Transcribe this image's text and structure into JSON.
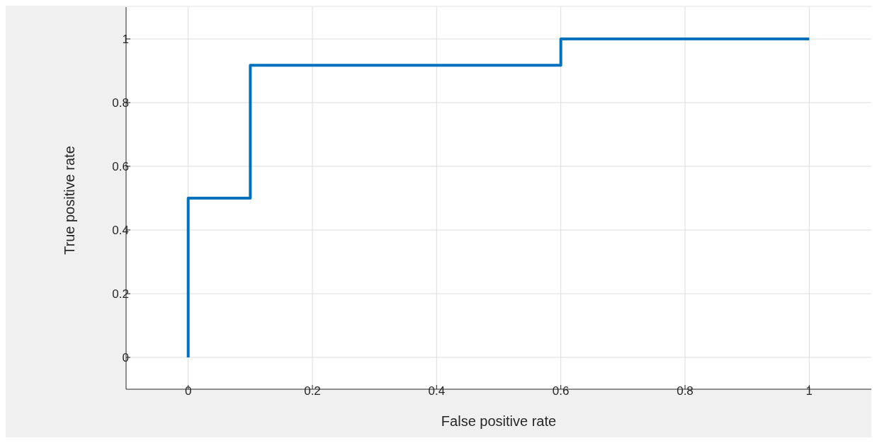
{
  "chart_data": {
    "type": "line",
    "xlabel": "False positive rate",
    "ylabel": "True positive rate",
    "x": [
      0,
      0,
      0.1,
      0.1,
      0.6,
      0.6,
      1
    ],
    "series": [
      {
        "color": "#0072bd",
        "values": [
          0,
          0.5,
          0.5,
          0.917,
          0.917,
          1,
          1
        ]
      }
    ],
    "xlim": [
      -0.1,
      1.1
    ],
    "ylim": [
      -0.1,
      1.1
    ],
    "xticks": [
      0,
      0.2,
      0.4,
      0.6,
      0.8,
      1
    ],
    "yticks": [
      0,
      0.2,
      0.4,
      0.6,
      0.8,
      1
    ],
    "grid": true,
    "legend": false,
    "line_style": "solid"
  }
}
